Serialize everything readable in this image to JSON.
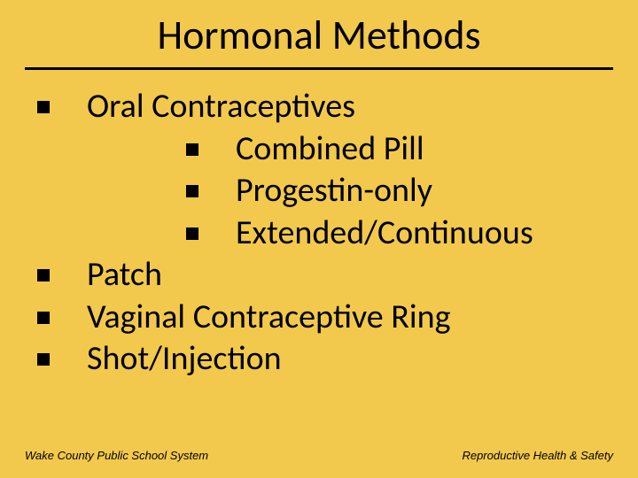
{
  "slide": {
    "background_color": "#f2c94c",
    "text_color": "#000000",
    "title": "Hormonal Methods",
    "title_fontsize": 46,
    "title_underline_color": "#000000",
    "title_underline_width": 3,
    "bullet_shape": "square",
    "bullet_size": 14,
    "bullet_color": "#000000",
    "body_fontsize": 38,
    "items": [
      {
        "text": "Oral Contraceptives",
        "subitems": [
          {
            "text": "Combined Pill"
          },
          {
            "text": "Progestin-only"
          },
          {
            "text": "Extended/Continuous"
          }
        ]
      },
      {
        "text": "Patch"
      },
      {
        "text": "Vaginal Contraceptive Ring"
      },
      {
        "text": "Shot/Injection"
      }
    ],
    "footer_left": "Wake County Public School System",
    "footer_right": "Reproductive Health & Safety",
    "footer_fontsize": 13
  }
}
